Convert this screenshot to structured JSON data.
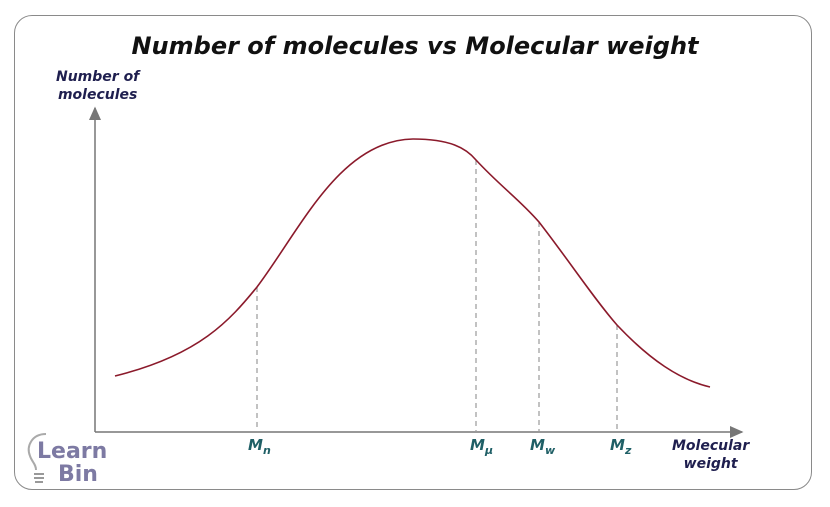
{
  "title": "Number of molecules vs Molecular weight",
  "y_axis_label": [
    "Number of",
    "molecules"
  ],
  "x_axis_label": [
    "Molecular",
    "weight"
  ],
  "markers": [
    {
      "main": "M",
      "sub": "n"
    },
    {
      "main": "M",
      "sub": "μ"
    },
    {
      "main": "M",
      "sub": "w"
    },
    {
      "main": "M",
      "sub": "z"
    }
  ],
  "logo": "Learn Bin",
  "colors": {
    "curve": "#8b1a2b",
    "axis": "#777777",
    "marker_text": "#1f5f66",
    "axis_text": "#1f1f4f",
    "logo": "#7d7aa3"
  }
}
